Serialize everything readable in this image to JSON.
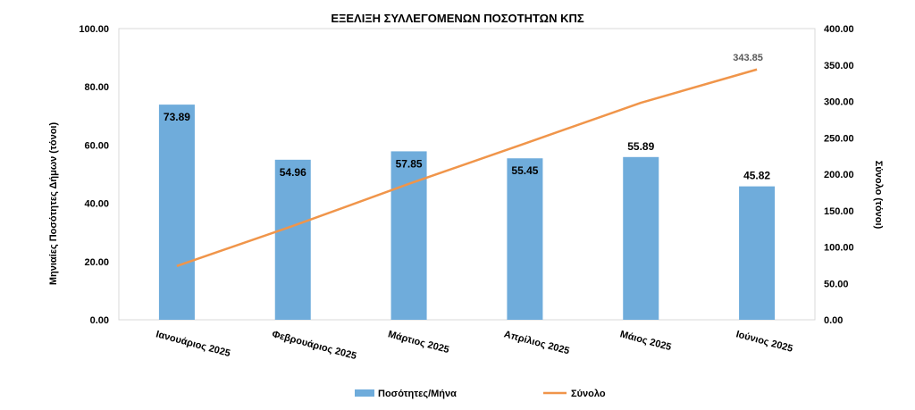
{
  "chart_data": {
    "type": "bar",
    "title": "ΕΞΕΛΙΞΗ ΣΥΛΛΕΓΟΜΕΝΩΝ ΠΟΣΟΤΗΤΩΝ ΚΠΣ",
    "ylabel": "Μηνιαίες Ποσότητες Δήμων (τόνοι)",
    "y2label": "Σύνολο (τόνοι)",
    "categories": [
      "Ιανουάριος 2025",
      "Φεβρουάριος 2025",
      "Μάρτιος 2025",
      "Απρίλιος 2025",
      "Μάιος 2025",
      "Ιούνιος 2025"
    ],
    "series": [
      {
        "name": "Ποσότητες/Μήνα",
        "type": "bar",
        "axis": "left",
        "color": "#6FACDB",
        "values": [
          73.89,
          54.96,
          57.85,
          55.45,
          55.89,
          45.82
        ],
        "labels": [
          "73.89",
          "54.96",
          "57.85",
          "55.45",
          "55.89",
          "45.82"
        ]
      },
      {
        "name": "Σύνολο",
        "type": "line",
        "axis": "right",
        "color": "#F0954A",
        "values": [
          73.89,
          128.85,
          186.7,
          242.15,
          298.04,
          343.85
        ],
        "end_label": "343.85"
      }
    ],
    "ylim": [
      0,
      100
    ],
    "y_ticks": [
      "0.00",
      "20.00",
      "40.00",
      "60.00",
      "80.00",
      "100.00"
    ],
    "y2lim": [
      0,
      400
    ],
    "y2_ticks": [
      "0.00",
      "50.00",
      "100.00",
      "150.00",
      "200.00",
      "250.00",
      "300.00",
      "350.00",
      "400.00"
    ],
    "legend_position": "bottom",
    "grid": false
  }
}
